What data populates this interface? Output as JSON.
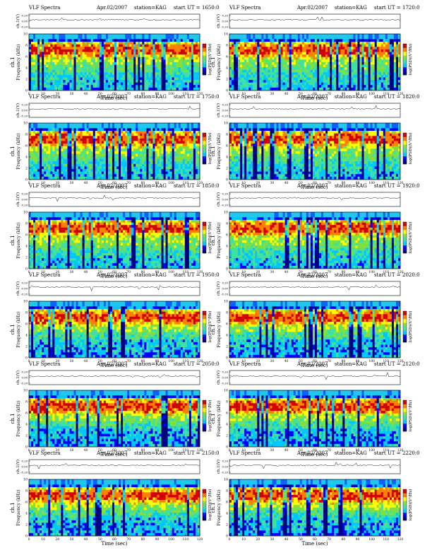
{
  "chart_data": {
    "type": "heatmap",
    "grid": "6x2",
    "common": {
      "header_left": "VLF Spectra",
      "header_date": "Apr.02/2007",
      "header_station": "station=KAG",
      "header_ut_prefix": "start UT =",
      "xlabel": "Time (sec)",
      "ylabel": "Frequency (kHz)",
      "ylabel_top": "ch.1",
      "wave_ylabel": "ch.1(V)",
      "colorbar_label": "log(PSD)(V²/Hz)",
      "x_ticks": [
        "0",
        "10",
        "20",
        "30",
        "40",
        "50",
        "60",
        "70",
        "80",
        "90",
        "100",
        "110",
        "120"
      ],
      "y_ticks": [
        "0",
        "2",
        "4",
        "6",
        "8",
        "10"
      ],
      "wave_ticks": [
        "0.20",
        "0.00",
        "-0.20"
      ],
      "colorbar_ticks": [
        "",
        ""
      ],
      "xlim": [
        0,
        120
      ],
      "ylim": [
        0,
        10
      ],
      "colormap": [
        "#00007f",
        "#0000ff",
        "#00c8ff",
        "#40e0a0",
        "#80e040",
        "#ffff00",
        "#ff8000",
        "#d00000"
      ]
    },
    "panels": [
      {
        "start_ut": "1650:0"
      },
      {
        "start_ut": "1720:0"
      },
      {
        "start_ut": "1750:0"
      },
      {
        "start_ut": "1820:0"
      },
      {
        "start_ut": "1850:0"
      },
      {
        "start_ut": "1920:0"
      },
      {
        "start_ut": "1950:0"
      },
      {
        "start_ut": "2020:0"
      },
      {
        "start_ut": "2050:0"
      },
      {
        "start_ut": "2120:0"
      },
      {
        "start_ut": "2150:0"
      },
      {
        "start_ut": "2220:0"
      }
    ]
  }
}
